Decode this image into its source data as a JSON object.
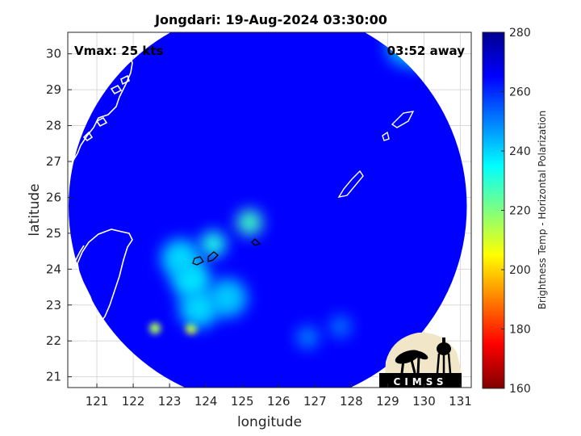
{
  "chart_data": {
    "type": "heatmap",
    "title": "Jongdari: 19-Aug-2024 03:30:00",
    "xlabel": "longitude",
    "ylabel": "latitude",
    "xlim": [
      120.2,
      131.3
    ],
    "ylim": [
      20.7,
      30.6
    ],
    "x_ticks": [
      121,
      122,
      123,
      124,
      125,
      126,
      127,
      128,
      129,
      130,
      131
    ],
    "y_ticks": [
      21,
      22,
      23,
      24,
      25,
      26,
      27,
      28,
      29,
      30
    ],
    "grid": true,
    "annotations": {
      "vmax": "Vmax: 25 kts",
      "time_away": "03:52 away",
      "logo_text": "CIMSS"
    },
    "colorbar": {
      "label": "Brightness Temp - Horizontal Polarization",
      "range": [
        160,
        280
      ],
      "ticks": [
        160,
        180,
        200,
        220,
        240,
        260,
        280
      ],
      "colormap": "jet",
      "placement": "right"
    },
    "data_extent": {
      "shape": "disk",
      "center_lon": 125.7,
      "center_lat": 25.75,
      "background_temp": 265
    },
    "features": [
      {
        "name": "convective core",
        "lon": 123.6,
        "lat": 22.35,
        "temp": 205
      },
      {
        "name": "convective cell",
        "lon": 122.6,
        "lat": 22.35,
        "temp": 215
      },
      {
        "name": "band",
        "lon": 125.2,
        "lat": 25.3,
        "temp": 228
      },
      {
        "name": "band",
        "lon": 124.2,
        "lat": 24.7,
        "temp": 232
      },
      {
        "name": "band",
        "lon": 123.6,
        "lat": 23.7,
        "temp": 238
      },
      {
        "name": "band",
        "lon": 123.3,
        "lat": 24.3,
        "temp": 240
      },
      {
        "name": "band",
        "lon": 124.6,
        "lat": 23.2,
        "temp": 242
      },
      {
        "name": "band",
        "lon": 123.8,
        "lat": 22.9,
        "temp": 240
      },
      {
        "name": "band",
        "lon": 129.5,
        "lat": 30.2,
        "temp": 244
      },
      {
        "name": "band",
        "lon": 129.9,
        "lat": 29.9,
        "temp": 246
      },
      {
        "name": "band",
        "lon": 126.8,
        "lat": 22.1,
        "temp": 250
      },
      {
        "name": "band",
        "lon": 127.7,
        "lat": 22.4,
        "temp": 252
      }
    ]
  },
  "colors": {
    "axes_background": "#ffffff",
    "coastline": "#ffffff",
    "islands_outline": "#000000",
    "grid": "#d9d9d9"
  }
}
